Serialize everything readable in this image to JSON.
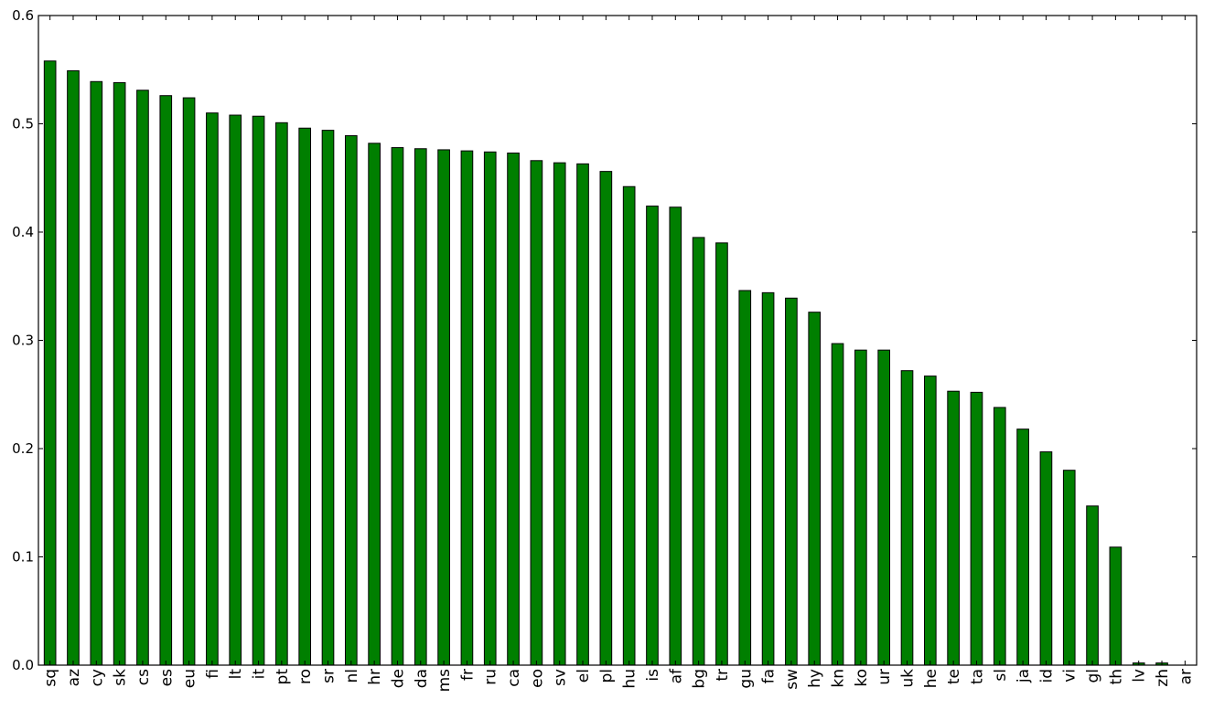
{
  "chart_data": {
    "type": "bar",
    "title": "",
    "xlabel": "",
    "ylabel": "",
    "ylim": [
      0,
      0.6
    ],
    "yticks": [
      "0.0",
      "0.1",
      "0.2",
      "0.3",
      "0.4",
      "0.5",
      "0.6"
    ],
    "grid": false,
    "legend": "none",
    "bar_color": "#007f00",
    "categories": [
      "sq",
      "az",
      "cy",
      "sk",
      "cs",
      "es",
      "eu",
      "fi",
      "lt",
      "it",
      "pt",
      "ro",
      "sr",
      "nl",
      "hr",
      "de",
      "da",
      "ms",
      "fr",
      "ru",
      "ca",
      "eo",
      "sv",
      "el",
      "pl",
      "hu",
      "is",
      "af",
      "bg",
      "tr",
      "gu",
      "fa",
      "sw",
      "hy",
      "kn",
      "ko",
      "ur",
      "uk",
      "he",
      "te",
      "ta",
      "sl",
      "ja",
      "id",
      "vi",
      "gl",
      "th",
      "lv",
      "zh",
      "ar"
    ],
    "values": [
      0.558,
      0.549,
      0.539,
      0.538,
      0.531,
      0.526,
      0.524,
      0.51,
      0.508,
      0.507,
      0.501,
      0.496,
      0.494,
      0.489,
      0.482,
      0.478,
      0.477,
      0.476,
      0.475,
      0.474,
      0.473,
      0.466,
      0.464,
      0.463,
      0.456,
      0.442,
      0.424,
      0.423,
      0.395,
      0.39,
      0.346,
      0.344,
      0.339,
      0.326,
      0.297,
      0.291,
      0.291,
      0.272,
      0.267,
      0.253,
      0.252,
      0.238,
      0.218,
      0.197,
      0.18,
      0.147,
      0.109,
      0.002,
      0.002,
      0.0
    ]
  }
}
